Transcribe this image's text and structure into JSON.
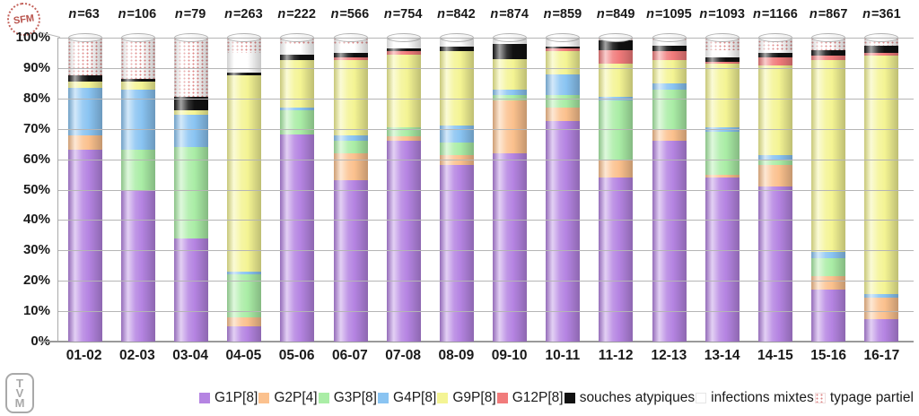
{
  "logos": {
    "sfm": "SFM",
    "tvm": [
      "T",
      "V",
      "M"
    ]
  },
  "y_axis": {
    "tick_labels": [
      "100%",
      "90%",
      "80%",
      "70%",
      "60%",
      "50%",
      "40%",
      "30%",
      "20%",
      "10%",
      "0%"
    ]
  },
  "chart_data": {
    "type": "bar",
    "stacked": true,
    "value_unit": "percent",
    "ylim": [
      0,
      100
    ],
    "grid": true,
    "legend_position": "bottom",
    "categories": [
      "01-02",
      "02-03",
      "03-04",
      "04-05",
      "05-06",
      "06-07",
      "07-08",
      "08-09",
      "09-10",
      "10-11",
      "11-12",
      "12-13",
      "13-14",
      "14-15",
      "15-16",
      "16-17"
    ],
    "n_labels": [
      "n=63",
      "n=106",
      "n=79",
      "n=263",
      "n=222",
      "n=566",
      "n=754",
      "n=842",
      "n=874",
      "n=859",
      "n=849",
      "n=1095",
      "n=1093",
      "n=1166",
      "n=867",
      "n=361"
    ],
    "series": [
      {
        "name": "G1P[8]",
        "color": "#b584e2",
        "pattern": "solid",
        "values": [
          63,
          50,
          34,
          5,
          68,
          53,
          66,
          58,
          62,
          72.5,
          54,
          66,
          54,
          51,
          17,
          7.5
        ]
      },
      {
        "name": "G2P[4]",
        "color": "#fbc18e",
        "pattern": "solid",
        "values": [
          5,
          0,
          0,
          3,
          0,
          9,
          1.5,
          3.5,
          17.5,
          4.5,
          6,
          4,
          1,
          7,
          4.5,
          7
        ]
      },
      {
        "name": "G3P[8]",
        "color": "#aaeda6",
        "pattern": "solid",
        "values": [
          0,
          13,
          30,
          14,
          8,
          4,
          3,
          4,
          1.5,
          4,
          19.5,
          13,
          14,
          2,
          6,
          0
        ]
      },
      {
        "name": "G4P[8]",
        "color": "#8ac4f2",
        "pattern": "solid",
        "values": [
          15.5,
          20,
          10.5,
          1,
          1,
          2,
          0,
          5.5,
          2,
          7,
          1,
          2,
          1.5,
          1.5,
          2,
          1
        ]
      },
      {
        "name": "G9P[8]",
        "color": "#f4f494",
        "pattern": "solid",
        "values": [
          2,
          2.5,
          1.5,
          64.5,
          15.5,
          24.5,
          24,
          24.5,
          10,
          7.5,
          11,
          7.5,
          21,
          29.5,
          63,
          78.5
        ]
      },
      {
        "name": "G12P[8]",
        "color": "#f17b7b",
        "pattern": "solid",
        "values": [
          0,
          0,
          0,
          0,
          0,
          1,
          1,
          0,
          0,
          1,
          4.5,
          3,
          0.5,
          2.5,
          1.5,
          1
        ]
      },
      {
        "name": "souches atypiques",
        "color": "#111111",
        "pattern": "solid",
        "values": [
          2,
          1,
          4.5,
          1,
          2,
          1.5,
          1,
          1.5,
          5,
          0.5,
          3,
          2,
          1.5,
          1.5,
          2,
          2.5
        ]
      },
      {
        "name": "infections mixtes",
        "color": "#ffffff",
        "pattern": "white",
        "values": [
          0,
          0,
          0,
          6.5,
          3.5,
          3,
          3.5,
          3,
          2,
          3,
          0,
          1.5,
          2.5,
          1,
          0,
          0
        ]
      },
      {
        "name": "typage partiel",
        "color": "#ffffff",
        "pattern": "dots",
        "values": [
          12.5,
          13.5,
          19.5,
          5,
          2,
          2,
          0,
          0,
          0,
          0,
          1,
          1,
          4,
          3,
          4,
          2.5
        ]
      }
    ]
  }
}
